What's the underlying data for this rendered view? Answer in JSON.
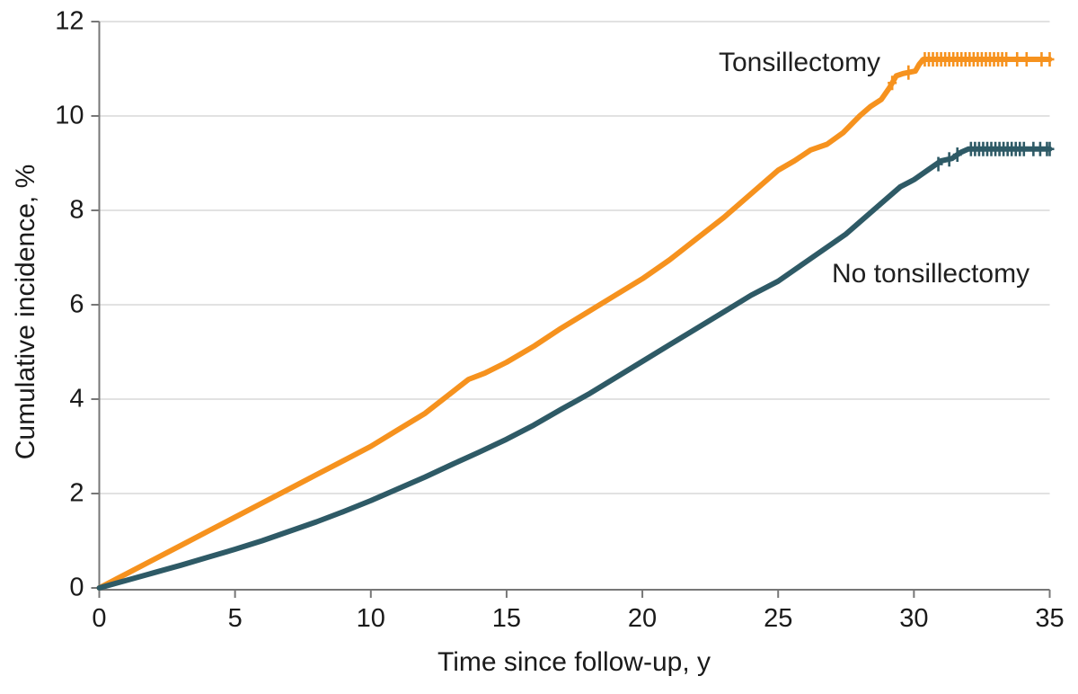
{
  "chart_data": {
    "type": "line",
    "title": "",
    "xlabel": "Time since follow-up, y",
    "ylabel": "Cumulative incidence, %",
    "xlim": [
      0,
      35
    ],
    "ylim": [
      0,
      12
    ],
    "xticks": [
      0,
      5,
      10,
      15,
      20,
      25,
      30,
      35
    ],
    "yticks": [
      0,
      2,
      4,
      6,
      8,
      10,
      12
    ],
    "grid": "horizontal gridlines at each y tick",
    "legend_position": "labels next to curves",
    "colors": {
      "gridline": "#d8d8d8",
      "axis": "#777777",
      "text": "#1a1a1a"
    },
    "series": [
      {
        "name": "Tonsillectomy",
        "color": "#f6921e",
        "points": [
          [
            0,
            0
          ],
          [
            1,
            0.3
          ],
          [
            2,
            0.6
          ],
          [
            3,
            0.9
          ],
          [
            4,
            1.2
          ],
          [
            5,
            1.5
          ],
          [
            6,
            1.8
          ],
          [
            7,
            2.1
          ],
          [
            8,
            2.4
          ],
          [
            9,
            2.7
          ],
          [
            10,
            3.0
          ],
          [
            11,
            3.35
          ],
          [
            12,
            3.7
          ],
          [
            13,
            4.15
          ],
          [
            13.6,
            4.42
          ],
          [
            14.2,
            4.55
          ],
          [
            15,
            4.78
          ],
          [
            16,
            5.12
          ],
          [
            17,
            5.5
          ],
          [
            18,
            5.85
          ],
          [
            19,
            6.2
          ],
          [
            20,
            6.55
          ],
          [
            21,
            6.95
          ],
          [
            22,
            7.4
          ],
          [
            23,
            7.85
          ],
          [
            24,
            8.35
          ],
          [
            25,
            8.85
          ],
          [
            25.6,
            9.05
          ],
          [
            26.2,
            9.28
          ],
          [
            26.8,
            9.4
          ],
          [
            27.4,
            9.65
          ],
          [
            28,
            10.0
          ],
          [
            28.4,
            10.2
          ],
          [
            28.8,
            10.35
          ],
          [
            29.1,
            10.6
          ],
          [
            29.35,
            10.85
          ],
          [
            29.6,
            10.9
          ],
          [
            30.05,
            10.95
          ],
          [
            30.2,
            11.1
          ],
          [
            30.35,
            11.2
          ],
          [
            35,
            11.2
          ]
        ],
        "censor_marks": [
          [
            29.2,
            10.7
          ],
          [
            29.8,
            10.92
          ],
          [
            30.4,
            11.2
          ],
          [
            30.55,
            11.2
          ],
          [
            30.7,
            11.2
          ],
          [
            30.85,
            11.2
          ],
          [
            31.0,
            11.2
          ],
          [
            31.15,
            11.2
          ],
          [
            31.3,
            11.2
          ],
          [
            31.45,
            11.2
          ],
          [
            31.6,
            11.2
          ],
          [
            31.75,
            11.2
          ],
          [
            31.9,
            11.2
          ],
          [
            32.05,
            11.2
          ],
          [
            32.2,
            11.2
          ],
          [
            32.35,
            11.2
          ],
          [
            32.5,
            11.2
          ],
          [
            32.65,
            11.2
          ],
          [
            32.8,
            11.2
          ],
          [
            32.95,
            11.2
          ],
          [
            33.1,
            11.2
          ],
          [
            33.25,
            11.2
          ],
          [
            33.4,
            11.2
          ],
          [
            33.8,
            11.2
          ],
          [
            34.15,
            11.2
          ],
          [
            34.7,
            11.2
          ],
          [
            35,
            11.2
          ]
        ],
        "final_value": 11.2
      },
      {
        "name": "No tonsillectomy",
        "color": "#2e5a66",
        "points": [
          [
            0,
            0
          ],
          [
            1,
            0.16
          ],
          [
            2,
            0.32
          ],
          [
            3,
            0.48
          ],
          [
            4,
            0.65
          ],
          [
            5,
            0.82
          ],
          [
            6,
            1.0
          ],
          [
            7,
            1.2
          ],
          [
            8,
            1.4
          ],
          [
            9,
            1.62
          ],
          [
            10,
            1.85
          ],
          [
            11,
            2.1
          ],
          [
            12,
            2.35
          ],
          [
            13,
            2.62
          ],
          [
            14,
            2.88
          ],
          [
            15,
            3.15
          ],
          [
            16,
            3.45
          ],
          [
            17,
            3.78
          ],
          [
            18,
            4.1
          ],
          [
            19,
            4.45
          ],
          [
            20,
            4.8
          ],
          [
            21,
            5.15
          ],
          [
            22,
            5.5
          ],
          [
            23,
            5.85
          ],
          [
            24,
            6.2
          ],
          [
            25,
            6.5
          ],
          [
            26,
            6.9
          ],
          [
            27,
            7.3
          ],
          [
            27.5,
            7.5
          ],
          [
            28,
            7.75
          ],
          [
            28.5,
            8.0
          ],
          [
            29,
            8.25
          ],
          [
            29.5,
            8.5
          ],
          [
            30,
            8.65
          ],
          [
            30.5,
            8.85
          ],
          [
            31,
            9.05
          ],
          [
            31.4,
            9.1
          ],
          [
            31.7,
            9.22
          ],
          [
            32,
            9.3
          ],
          [
            35,
            9.3
          ]
        ],
        "censor_marks": [
          [
            30.9,
            8.98
          ],
          [
            31.3,
            9.08
          ],
          [
            31.6,
            9.18
          ],
          [
            32.1,
            9.3
          ],
          [
            32.25,
            9.3
          ],
          [
            32.4,
            9.3
          ],
          [
            32.55,
            9.3
          ],
          [
            32.7,
            9.3
          ],
          [
            32.85,
            9.3
          ],
          [
            33.0,
            9.3
          ],
          [
            33.15,
            9.3
          ],
          [
            33.3,
            9.3
          ],
          [
            33.45,
            9.3
          ],
          [
            33.6,
            9.3
          ],
          [
            33.75,
            9.3
          ],
          [
            33.9,
            9.3
          ],
          [
            34.05,
            9.3
          ],
          [
            34.4,
            9.3
          ],
          [
            34.65,
            9.3
          ],
          [
            34.9,
            9.3
          ],
          [
            35,
            9.3
          ]
        ],
        "final_value": 9.3
      }
    ]
  }
}
